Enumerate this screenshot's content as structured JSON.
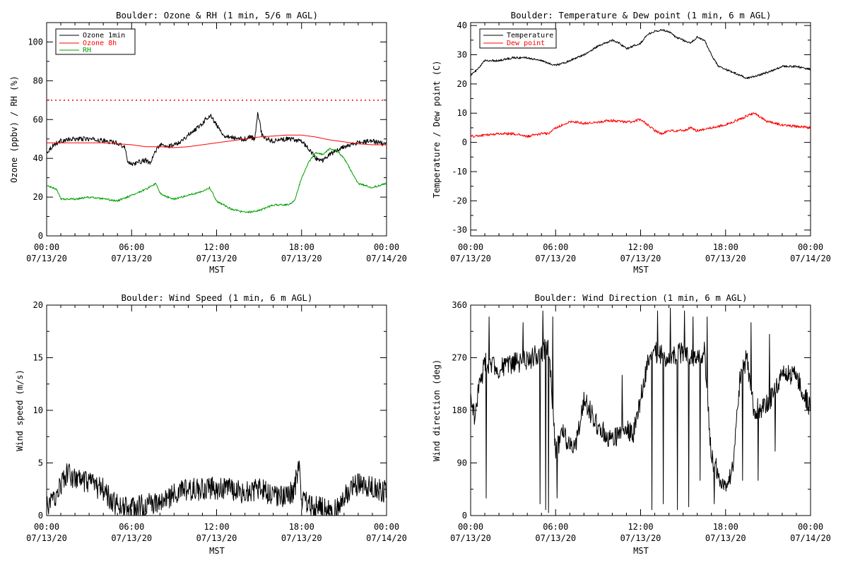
{
  "chart_data": [
    {
      "type": "line",
      "title": "Boulder: Ozone & RH (1 min, 5/6 m AGL)",
      "xlabel": "MST",
      "ylabel": "Ozone (ppbv) / RH (%)",
      "xlim": [
        "07/13/20 00:00",
        "07/14/20 00:00"
      ],
      "ylim": [
        0,
        110
      ],
      "yticks": [
        0,
        20,
        40,
        60,
        80,
        100
      ],
      "xtick_labels": [
        [
          "00:00",
          "07/13/20"
        ],
        [
          "06:00",
          "07/13/20"
        ],
        [
          "12:00",
          "07/13/20"
        ],
        [
          "18:00",
          "07/13/20"
        ],
        [
          "00:00",
          "07/14/20"
        ]
      ],
      "legend": "top-left",
      "reference_lines": [
        {
          "y": 70,
          "color": "#ff0000",
          "style": "dotted"
        }
      ],
      "series": [
        {
          "name": "Ozone 1min",
          "color": "#000000",
          "noise": 1.2,
          "x": [
            0,
            0.5,
            1,
            2,
            3,
            4,
            5,
            5.5,
            5.7,
            6,
            6.5,
            7,
            7.3,
            7.7,
            8,
            8.5,
            9,
            9.5,
            10,
            10.5,
            11,
            11.3,
            11.6,
            12,
            12.5,
            13,
            13.5,
            14,
            14.4,
            14.7,
            14.9,
            15.2,
            15.5,
            16,
            17,
            18,
            18.5,
            19,
            19.5,
            20,
            20.5,
            21,
            22,
            23,
            24
          ],
          "y": [
            43,
            47,
            49,
            50,
            50,
            49,
            48,
            46,
            39,
            37,
            38,
            39,
            37,
            44,
            47,
            46,
            47,
            49,
            52,
            55,
            58,
            61,
            62,
            57,
            52,
            51,
            50,
            50,
            51,
            50,
            64,
            52,
            50,
            49,
            50,
            49,
            45,
            40,
            39,
            42,
            44,
            46,
            48,
            49,
            47
          ]
        },
        {
          "name": "Ozone 8h",
          "color": "#ff0000",
          "noise": 0,
          "x": [
            0,
            2,
            4,
            6,
            7,
            8,
            9,
            10,
            11,
            12,
            13,
            14,
            15,
            16,
            17,
            18,
            19,
            20,
            21,
            22,
            23,
            24
          ],
          "y": [
            48,
            48,
            48,
            47,
            46,
            46,
            45.5,
            46,
            47,
            48,
            49,
            50,
            51,
            51.5,
            52,
            52,
            51,
            49.5,
            48.5,
            47.5,
            47,
            47
          ]
        },
        {
          "name": "RH",
          "color": "#00a000",
          "noise": 0.5,
          "x": [
            0,
            0.7,
            1,
            2,
            3,
            4,
            5,
            6,
            7,
            7.7,
            8,
            8.5,
            9,
            10,
            11,
            11.5,
            12,
            13,
            14,
            15,
            16,
            17,
            17.5,
            18,
            18.5,
            19,
            19.5,
            20,
            20.5,
            21,
            22,
            23,
            24
          ],
          "y": [
            26,
            24,
            19,
            19,
            20,
            19,
            18,
            21,
            24,
            27,
            22,
            20,
            19,
            21,
            23,
            25,
            18,
            14,
            12,
            13,
            16,
            16,
            18,
            30,
            38,
            43,
            42,
            45,
            44,
            40,
            27,
            25,
            27
          ]
        }
      ]
    },
    {
      "type": "line",
      "title": "Boulder: Temperature & Dew point (1 min, 6 m AGL)",
      "xlabel": "MST",
      "ylabel": "Temperature / Dew point (C)",
      "xlim": [
        "07/13/20 00:00",
        "07/14/20 00:00"
      ],
      "ylim": [
        -32,
        41
      ],
      "yticks": [
        -30,
        -20,
        -10,
        0,
        10,
        20,
        30,
        40
      ],
      "xtick_labels": [
        [
          "00:00",
          "07/13/20"
        ],
        [
          "06:00",
          "07/13/20"
        ],
        [
          "12:00",
          "07/13/20"
        ],
        [
          "18:00",
          "07/13/20"
        ],
        [
          "00:00",
          "07/14/20"
        ]
      ],
      "legend": "top-left",
      "series": [
        {
          "name": "Temperature",
          "color": "#000000",
          "noise": 0.35,
          "x": [
            0,
            0.5,
            1,
            2,
            3,
            4,
            5,
            5.5,
            6,
            6.5,
            7,
            7.5,
            8,
            9,
            10,
            10.5,
            11,
            11.5,
            12,
            12.5,
            13,
            13.5,
            14,
            14.5,
            15,
            15.5,
            16,
            16.5,
            17,
            17.5,
            18,
            18.5,
            19,
            19.5,
            20,
            21,
            22,
            23,
            24
          ],
          "y": [
            23,
            25,
            28,
            28,
            29,
            29,
            28,
            27,
            26.5,
            27,
            28,
            29,
            30,
            33,
            35,
            34,
            32,
            33,
            34,
            37,
            38,
            38.5,
            38,
            36,
            35,
            34,
            36,
            35,
            30,
            26,
            25,
            24,
            23,
            22,
            22.5,
            24,
            26,
            26,
            25
          ]
        },
        {
          "name": "Dew point",
          "color": "#ff0000",
          "noise": 0.45,
          "x": [
            0,
            1,
            2,
            3,
            4,
            5,
            5.5,
            6,
            6.5,
            7,
            7.5,
            8,
            9,
            10,
            11,
            11.5,
            12,
            12.5,
            13,
            13.5,
            14,
            14.5,
            15,
            15.5,
            16,
            17,
            18,
            19,
            20,
            21,
            22,
            23,
            24
          ],
          "y": [
            2,
            2.5,
            3,
            3,
            2,
            3,
            3,
            5,
            6,
            7,
            7,
            6.5,
            7,
            7.5,
            7,
            7,
            8,
            6,
            4,
            3,
            4,
            4,
            4,
            5,
            4,
            5,
            6,
            8,
            10,
            7,
            6,
            5.5,
            5
          ]
        }
      ]
    },
    {
      "type": "line",
      "title": "Boulder: Wind Speed (1 min, 6 m AGL)",
      "xlabel": "MST",
      "ylabel": "Wind speed (m/s)",
      "xlim": [
        "07/13/20 00:00",
        "07/14/20 00:00"
      ],
      "ylim": [
        0,
        20
      ],
      "yticks": [
        0,
        5,
        10,
        15,
        20
      ],
      "xtick_labels": [
        [
          "00:00",
          "07/13/20"
        ],
        [
          "06:00",
          "07/13/20"
        ],
        [
          "12:00",
          "07/13/20"
        ],
        [
          "18:00",
          "07/13/20"
        ],
        [
          "00:00",
          "07/14/20"
        ]
      ],
      "series": [
        {
          "color": "#000000",
          "noise": 1.1,
          "x": [
            0,
            0.5,
            1,
            1.5,
            2,
            3,
            4,
            4.5,
            5,
            6,
            7,
            8,
            9,
            10,
            11,
            12,
            13,
            14,
            15,
            16,
            17,
            17.5,
            17.8,
            18,
            19,
            20,
            20.5,
            21,
            22,
            23,
            24
          ],
          "y": [
            0.8,
            1.5,
            3,
            4,
            3.5,
            3,
            2.5,
            1.5,
            1,
            0.7,
            1,
            1.2,
            2,
            2.5,
            2.5,
            2.6,
            2.5,
            2.2,
            2.5,
            2,
            1.8,
            2.5,
            5,
            1.5,
            0.8,
            0.6,
            0.5,
            2,
            3,
            2.8,
            2.2
          ]
        }
      ]
    },
    {
      "type": "line",
      "title": "Boulder: Wind Direction (1 min, 6 m AGL)",
      "xlabel": "MST",
      "ylabel": "Wind direction (deg)",
      "xlim": [
        "07/13/20 00:00",
        "07/14/20 00:00"
      ],
      "ylim": [
        0,
        360
      ],
      "yticks": [
        0,
        90,
        180,
        270,
        360
      ],
      "xtick_labels": [
        [
          "00:00",
          "07/13/20"
        ],
        [
          "06:00",
          "07/13/20"
        ],
        [
          "12:00",
          "07/13/20"
        ],
        [
          "18:00",
          "07/13/20"
        ],
        [
          "00:00",
          "07/14/20"
        ]
      ],
      "series": [
        {
          "color": "#000000",
          "noise": 18,
          "x": [
            0,
            0.3,
            0.6,
            1,
            1.5,
            2,
            3,
            4,
            5,
            5.5,
            6,
            6.5,
            7,
            7.5,
            8,
            9,
            10,
            11,
            11.5,
            12,
            12.5,
            13,
            14,
            15,
            16,
            16.5,
            17,
            17.5,
            18,
            18.5,
            19,
            19.5,
            20,
            21,
            22,
            23,
            24
          ],
          "y": [
            200,
            170,
            220,
            260,
            260,
            250,
            260,
            265,
            280,
            290,
            110,
            140,
            120,
            130,
            200,
            150,
            130,
            150,
            140,
            200,
            260,
            280,
            270,
            280,
            270,
            280,
            100,
            70,
            40,
            80,
            230,
            270,
            180,
            190,
            240,
            240,
            180
          ],
          "spikes": [
            [
              1.1,
              30
            ],
            [
              1.3,
              340
            ],
            [
              3.7,
              330
            ],
            [
              4.9,
              20
            ],
            [
              5.1,
              350
            ],
            [
              5.3,
              10
            ],
            [
              5.5,
              5
            ],
            [
              5.8,
              340
            ],
            [
              6.1,
              30
            ],
            [
              10.7,
              240
            ],
            [
              12.8,
              10
            ],
            [
              13.2,
              350
            ],
            [
              13.6,
              20
            ],
            [
              14.1,
              355
            ],
            [
              14.6,
              10
            ],
            [
              15.1,
              350
            ],
            [
              15.4,
              15
            ],
            [
              15.7,
              340
            ],
            [
              16.2,
              60
            ],
            [
              16.7,
              340
            ],
            [
              17.2,
              20
            ],
            [
              19.2,
              60
            ],
            [
              19.8,
              330
            ],
            [
              20.3,
              60
            ],
            [
              21.1,
              310
            ],
            [
              21.5,
              110
            ]
          ]
        }
      ]
    }
  ]
}
